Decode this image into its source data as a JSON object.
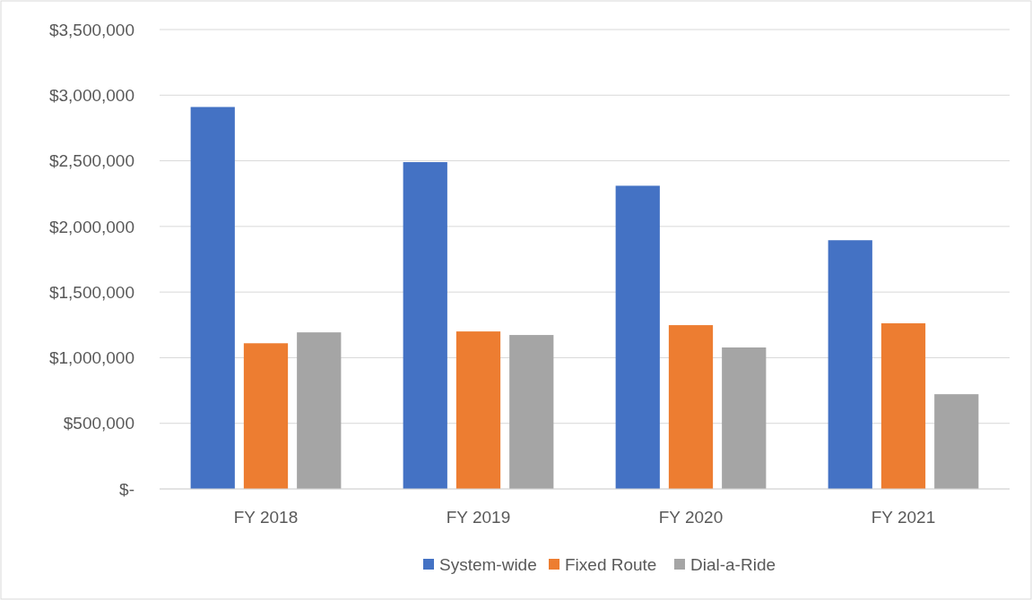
{
  "chart_data": {
    "type": "bar",
    "categories": [
      "FY 2018",
      "FY 2019",
      "FY 2020",
      "FY 2021"
    ],
    "series": [
      {
        "name": "System-wide",
        "color": "#4472c4",
        "values": [
          2910000,
          2490000,
          2310000,
          1895000
        ]
      },
      {
        "name": "Fixed Route",
        "color": "#ed7d31",
        "values": [
          1110000,
          1200000,
          1248000,
          1262000
        ]
      },
      {
        "name": "Dial-a-Ride",
        "color": "#a5a5a5",
        "values": [
          1193000,
          1173000,
          1078000,
          722000
        ]
      }
    ],
    "ylim": [
      0,
      3500000
    ],
    "yticks": [
      {
        "value": 0,
        "label": "$-"
      },
      {
        "value": 500000,
        "label": "$500,000"
      },
      {
        "value": 1000000,
        "label": "$1,000,000"
      },
      {
        "value": 1500000,
        "label": "$1,500,000"
      },
      {
        "value": 2000000,
        "label": "$2,000,000"
      },
      {
        "value": 2500000,
        "label": "$2,500,000"
      },
      {
        "value": 3000000,
        "label": "$3,000,000"
      },
      {
        "value": 3500000,
        "label": "$3,500,000"
      }
    ],
    "grid": "y",
    "legend": "bottom"
  }
}
